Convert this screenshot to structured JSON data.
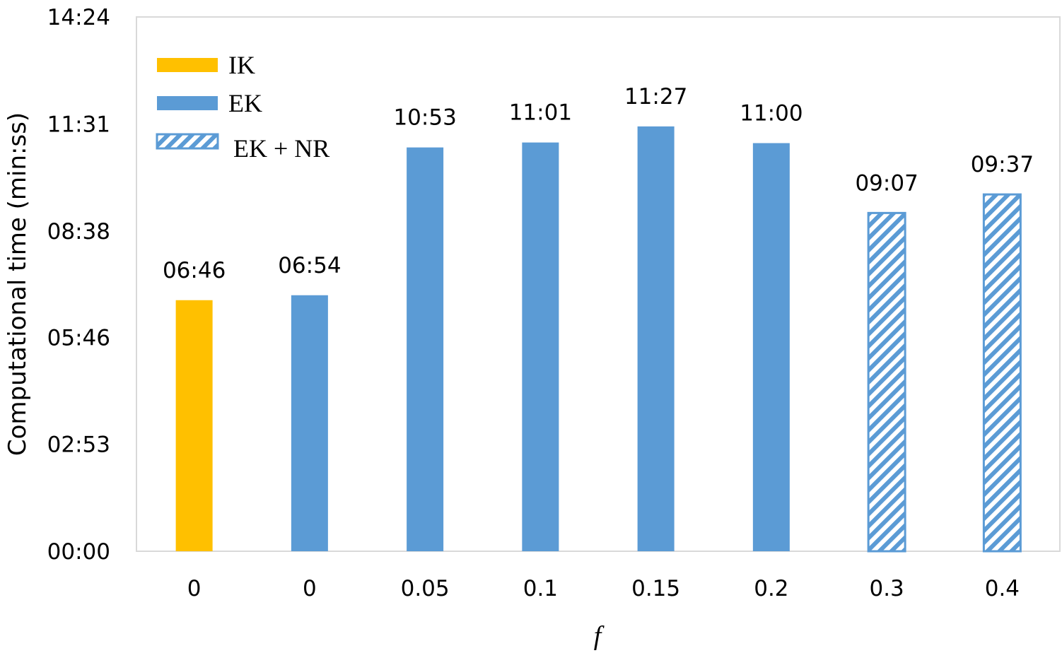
{
  "chart_data": {
    "type": "bar",
    "categories": [
      "0",
      "0",
      "0.05",
      "0.1",
      "0.15",
      "0.2",
      "0.3",
      "0.4"
    ],
    "values": [
      406,
      414,
      653,
      661,
      687,
      660,
      547,
      577
    ],
    "data_labels": [
      "06:46",
      "06:54",
      "10:53",
      "11:01",
      "11:27",
      "11:00",
      "09:07",
      "09:37"
    ],
    "series_of_bar": [
      "IK",
      "EK",
      "EK",
      "EK",
      "EK",
      "EK",
      "EK + NR",
      "EK + NR"
    ],
    "series": [
      {
        "name": "IK",
        "style": "solid",
        "color": "#FFC000"
      },
      {
        "name": "EK",
        "style": "solid",
        "color": "#5B9BD5"
      },
      {
        "name": "EK + NR",
        "style": "hatched",
        "color": "#5B9BD5"
      }
    ],
    "xlabel": "f",
    "ylabel": "Computational time (min:ss)",
    "ylim": [
      0,
      864
    ],
    "yticks": [
      0,
      173,
      346,
      518,
      691,
      864
    ],
    "ytick_labels": [
      "00:00",
      "02:53",
      "05:46",
      "08:38",
      "11:31",
      "14:24"
    ],
    "grid": false,
    "legend_position": "top-left"
  }
}
